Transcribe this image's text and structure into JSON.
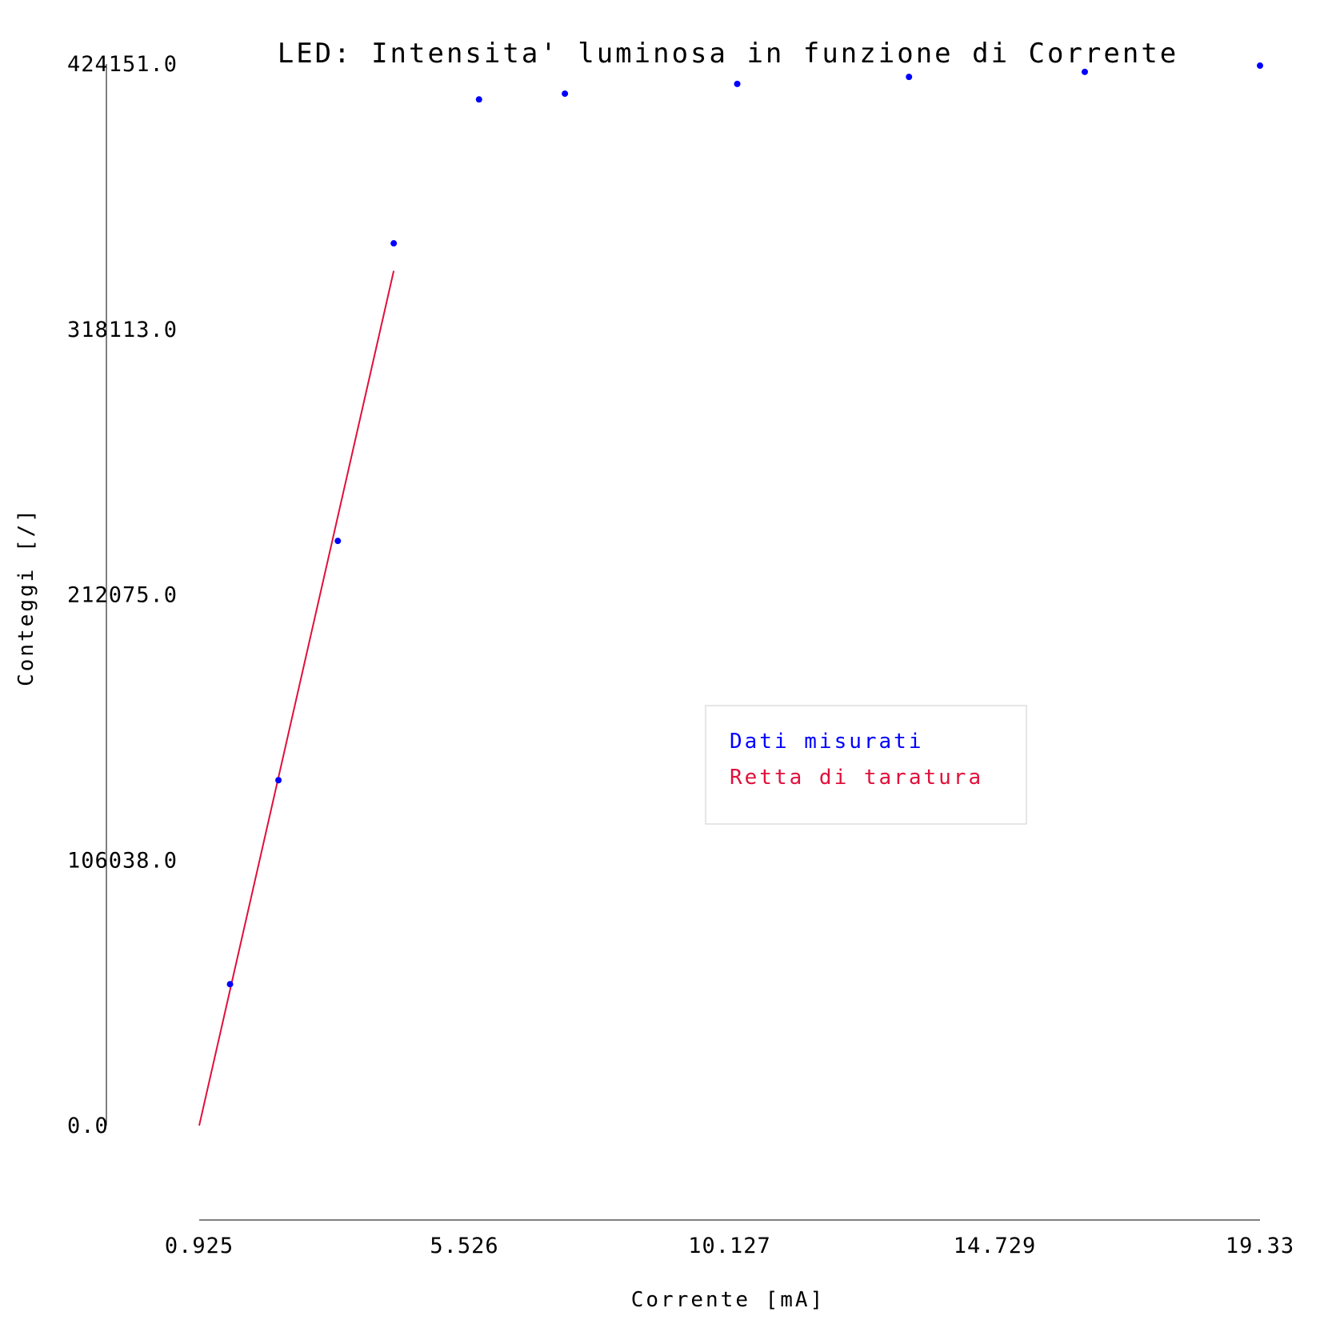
{
  "chart_data": {
    "type": "scatter",
    "title": "LED: Intensita' luminosa in funzione di Corrente",
    "xlabel": "Corrente [mA]",
    "ylabel": "Conteggi [/]",
    "xlim": [
      0.925,
      19.33
    ],
    "ylim": [
      0.0,
      424151.0
    ],
    "x_ticks": [
      "0.925",
      "5.526",
      "10.127",
      "14.729",
      "19.33"
    ],
    "y_ticks": [
      "0.0",
      "106038.0",
      "212075.0",
      "318113.0",
      "424151.0"
    ],
    "grid": false,
    "legend_position": "center-right",
    "series": [
      {
        "name": "Dati misurati",
        "kind": "scatter",
        "color": "#0000ff",
        "x": [
          1.46,
          2.3,
          3.33,
          4.3,
          5.78,
          7.27,
          10.26,
          13.24,
          16.29,
          19.33
        ],
        "y": [
          56500,
          138000,
          233600,
          352500,
          410000,
          412300,
          416200,
          419000,
          421000,
          423500
        ]
      },
      {
        "name": "Retta di taratura",
        "kind": "line",
        "color": "#e0103a",
        "x": [
          0.925,
          4.3
        ],
        "y": [
          0,
          341500
        ]
      }
    ]
  }
}
